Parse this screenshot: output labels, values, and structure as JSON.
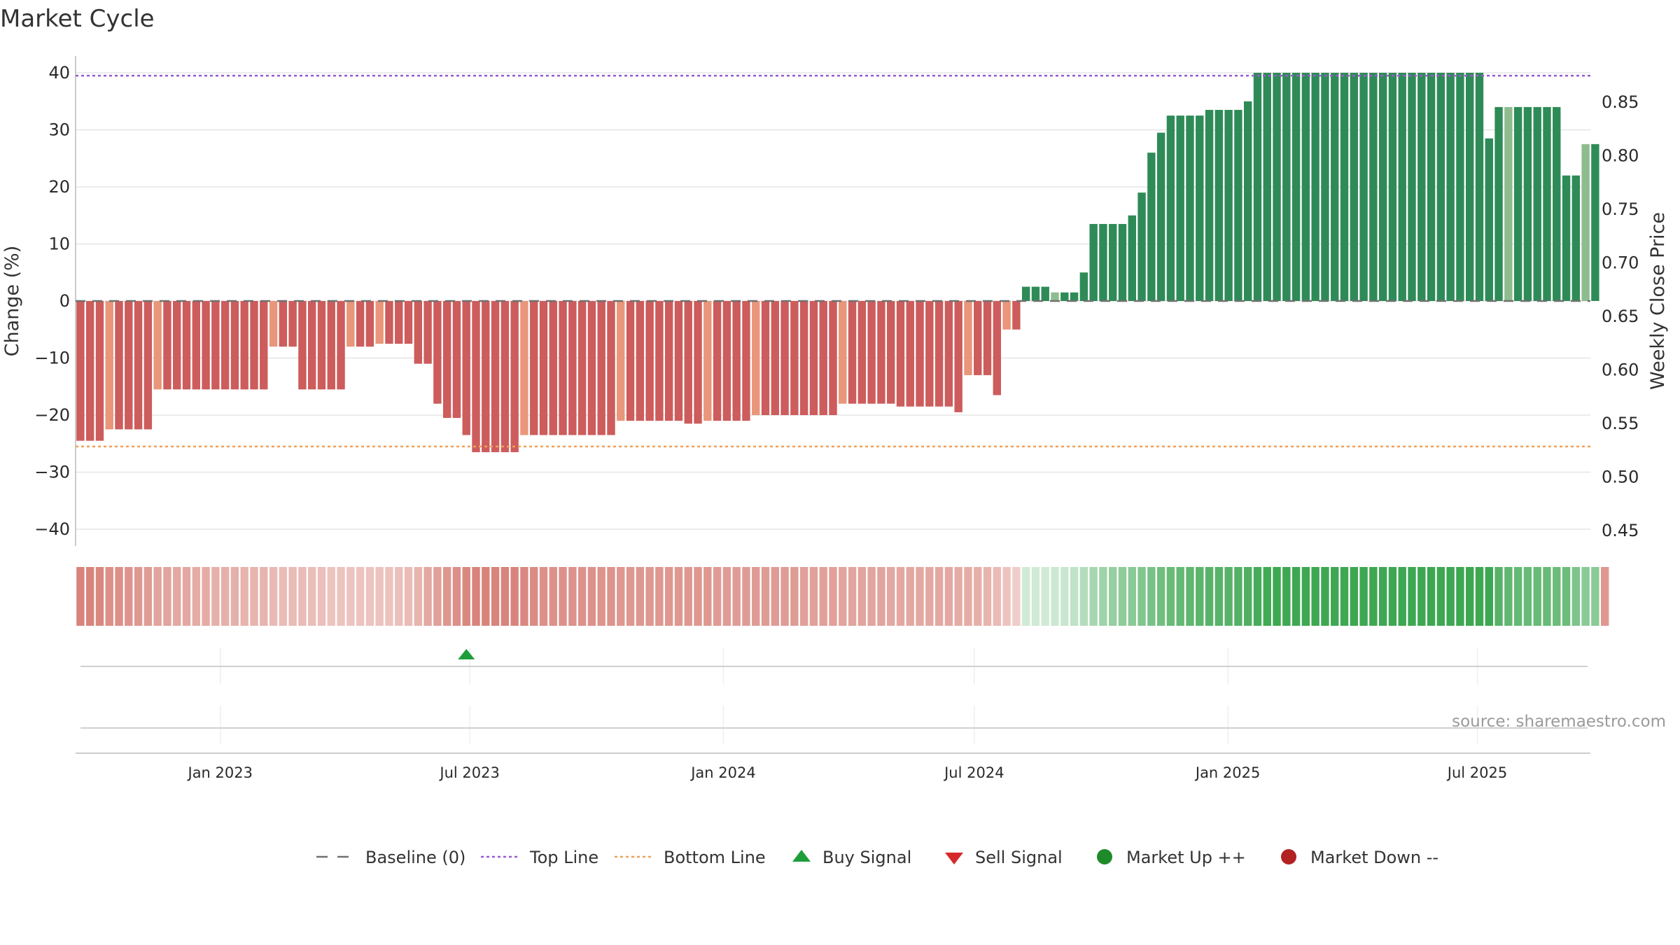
{
  "chart_data": {
    "type": "bar",
    "title": "Market Cycle",
    "ylabel": "Change (%)",
    "y2label": "Weekly Close Price",
    "ylim": [
      -44,
      43
    ],
    "y_ticks": [
      40,
      30,
      20,
      10,
      0,
      -10,
      -20,
      -30,
      -40
    ],
    "y_tick_labels": [
      "40",
      "30",
      "20",
      "10",
      "0",
      "−10",
      "−20",
      "−30",
      "−40"
    ],
    "y2lim": [
      0.435,
      0.875
    ],
    "y2_ticks": [
      0.85,
      0.8,
      0.75,
      0.7,
      0.65,
      0.6,
      0.55,
      0.5,
      0.45
    ],
    "y2_tick_labels": [
      "0.85",
      "0.80",
      "0.75",
      "0.70",
      "0.65",
      "0.60",
      "0.55",
      "0.50",
      "0.45"
    ],
    "x_range": [
      "2022-09-18",
      "2025-09-21"
    ],
    "x_ticks": [
      {
        "date": "2023-01-01",
        "label": "Jan 2023"
      },
      {
        "date": "2023-07-01",
        "label": "Jul 2023"
      },
      {
        "date": "2024-01-01",
        "label": "Jan 2024"
      },
      {
        "date": "2024-07-01",
        "label": "Jul 2024"
      },
      {
        "date": "2025-01-01",
        "label": "Jan 2025"
      },
      {
        "date": "2025-07-01",
        "label": "Jul 2025"
      }
    ],
    "start_date": "2022-09-18",
    "interval_days": 7,
    "top_line": 39.5,
    "bottom_line": -25.5,
    "baseline": 0,
    "series": [
      {
        "values": [
          -24.5,
          -24.5,
          -24.5,
          -22.5,
          -22.5,
          -22.5,
          -22.5,
          -22.5,
          -15.5,
          -15.5,
          -15.5,
          -15.5,
          -15.5,
          -15.5,
          -15.5,
          -15.5,
          -15.5,
          -15.5,
          -15.5,
          -15.5,
          -8,
          -8,
          -8,
          -15.5,
          -15.5,
          -15.5,
          -15.5,
          -15.5,
          -8,
          -8,
          -8,
          -7.5,
          -7.5,
          -7.5,
          -7.5,
          -11,
          -11,
          -18,
          -20.5,
          -20.5,
          -23.5,
          -26.5,
          -26.5,
          -26.5,
          -26.5,
          -26.5,
          -23.5,
          -23.5,
          -23.5,
          -23.5,
          -23.5,
          -23.5,
          -23.5,
          -23.5,
          -23.5,
          -23.5,
          -21,
          -21,
          -21,
          -21,
          -21,
          -21,
          -21,
          -21.5,
          -21.5,
          -21,
          -21,
          -21,
          -21,
          -21,
          -20,
          -20,
          -20,
          -20,
          -20,
          -20,
          -20,
          -20,
          -20,
          -18,
          -18,
          -18,
          -18,
          -18,
          -18,
          -18.5,
          -18.5,
          -18.5,
          -18.5,
          -18.5,
          -18.5,
          -19.5,
          -13,
          -13,
          -13,
          -16.5,
          -5,
          -5,
          2.5,
          2.5,
          2.5,
          1.5,
          1.5,
          1.5,
          5,
          13.5,
          13.5,
          13.5,
          13.5,
          15,
          19,
          26,
          29.5,
          32.5,
          32.5,
          32.5,
          32.5,
          33.5,
          33.5,
          33.5,
          33.5,
          35,
          40,
          40,
          40,
          40,
          40,
          40,
          40,
          40,
          40,
          40,
          40,
          40,
          40,
          40,
          40,
          40,
          40,
          40,
          40,
          40,
          40,
          40,
          40,
          40,
          28.5,
          34,
          34,
          34,
          34,
          34,
          34,
          34,
          22,
          22,
          27.5,
          27.5
        ],
        "tones": [
          "red",
          "red",
          "red",
          "lightred",
          "red",
          "red",
          "red",
          "red",
          "lightred",
          "red",
          "red",
          "red",
          "red",
          "red",
          "red",
          "red",
          "red",
          "red",
          "red",
          "red",
          "lightred",
          "red",
          "red",
          "red",
          "red",
          "red",
          "red",
          "red",
          "lightred",
          "red",
          "red",
          "lightred",
          "red",
          "red",
          "red",
          "red",
          "red",
          "red",
          "red",
          "red",
          "red",
          "red",
          "red",
          "red",
          "red",
          "red",
          "lightred",
          "red",
          "red",
          "red",
          "red",
          "red",
          "red",
          "red",
          "red",
          "red",
          "lightred",
          "red",
          "red",
          "red",
          "red",
          "red",
          "red",
          "red",
          "red",
          "lightred",
          "red",
          "red",
          "red",
          "red",
          "lightred",
          "red",
          "red",
          "red",
          "red",
          "red",
          "red",
          "red",
          "red",
          "lightred",
          "red",
          "red",
          "red",
          "red",
          "red",
          "red",
          "red",
          "red",
          "red",
          "red",
          "red",
          "red",
          "lightred",
          "red",
          "red",
          "red",
          "lightred",
          "red",
          "green",
          "green",
          "green",
          "lightgreen",
          "green",
          "green",
          "green",
          "green",
          "green",
          "green",
          "green",
          "green",
          "green",
          "green",
          "green",
          "green",
          "green",
          "green",
          "green",
          "green",
          "green",
          "green",
          "green",
          "green",
          "green",
          "green",
          "green",
          "green",
          "green",
          "green",
          "green",
          "green",
          "green",
          "green",
          "green",
          "green",
          "green",
          "green",
          "green",
          "green",
          "green",
          "green",
          "green",
          "green",
          "green",
          "green",
          "green",
          "green",
          "green",
          "green",
          "lightgreen",
          "green",
          "green",
          "green",
          "green",
          "green",
          "green",
          "green",
          "lightgreen",
          "green",
          "green",
          "green"
        ]
      }
    ],
    "strength": [
      0.62,
      0.62,
      0.6,
      0.56,
      0.56,
      0.54,
      0.52,
      0.5,
      0.46,
      0.46,
      0.44,
      0.44,
      0.42,
      0.42,
      0.4,
      0.4,
      0.4,
      0.38,
      0.38,
      0.38,
      0.35,
      0.34,
      0.34,
      0.34,
      0.33,
      0.32,
      0.3,
      0.3,
      0.3,
      0.3,
      0.3,
      0.3,
      0.3,
      0.32,
      0.34,
      0.38,
      0.44,
      0.48,
      0.52,
      0.56,
      0.6,
      0.62,
      0.62,
      0.62,
      0.62,
      0.62,
      0.6,
      0.58,
      0.56,
      0.55,
      0.55,
      0.55,
      0.55,
      0.55,
      0.54,
      0.54,
      0.52,
      0.52,
      0.52,
      0.52,
      0.52,
      0.52,
      0.52,
      0.52,
      0.52,
      0.52,
      0.5,
      0.5,
      0.5,
      0.5,
      0.5,
      0.5,
      0.5,
      0.5,
      0.5,
      0.48,
      0.48,
      0.48,
      0.48,
      0.46,
      0.46,
      0.46,
      0.46,
      0.46,
      0.44,
      0.44,
      0.44,
      0.44,
      0.44,
      0.44,
      0.44,
      0.42,
      0.42,
      0.4,
      0.38,
      0.34,
      0.3,
      0.25,
      0.22,
      0.22,
      0.22,
      0.24,
      0.26,
      0.3,
      0.36,
      0.42,
      0.46,
      0.5,
      0.54,
      0.56,
      0.6,
      0.64,
      0.68,
      0.72,
      0.74,
      0.76,
      0.78,
      0.8,
      0.8,
      0.8,
      0.82,
      0.84,
      0.88,
      0.9,
      0.92,
      0.92,
      0.92,
      0.92,
      0.92,
      0.92,
      0.92,
      0.92,
      0.92,
      0.92,
      0.92,
      0.92,
      0.92,
      0.92,
      0.92,
      0.92,
      0.92,
      0.92,
      0.92,
      0.92,
      0.92,
      0.92,
      0.92,
      0.8,
      0.76,
      0.74,
      0.72,
      0.72,
      0.72,
      0.7,
      0.7,
      0.62,
      0.56,
      0.56,
      0.52
    ],
    "signals": [
      {
        "type": "buy",
        "date": "2023-06-25"
      }
    ],
    "legend": [
      {
        "label": "Baseline (0)",
        "symbol": "dash",
        "color": "#707070"
      },
      {
        "label": "Top Line",
        "symbol": "dot",
        "color": "#9b59d0"
      },
      {
        "label": "Bottom Line",
        "symbol": "dot",
        "color": "#f0a05a"
      },
      {
        "label": "Buy Signal",
        "symbol": "triangle-up",
        "color": "#1e9e3a"
      },
      {
        "label": "Sell Signal",
        "symbol": "triangle-down",
        "color": "#d62a2a"
      },
      {
        "label": "Market Up ++",
        "symbol": "circle",
        "color": "#1f8a2a"
      },
      {
        "label": "Market Down --",
        "symbol": "circle",
        "color": "#b22222"
      }
    ],
    "legend_position": "bottom",
    "grid": true,
    "source": "source: sharemaestro.com"
  },
  "colors": {
    "red": "#cd5c5c",
    "lightred": "#e9967a",
    "green": "#2e8b57",
    "lightgreen": "#8fbc8f",
    "strength_red": "#c0392b",
    "strength_green": "#2ea043"
  }
}
